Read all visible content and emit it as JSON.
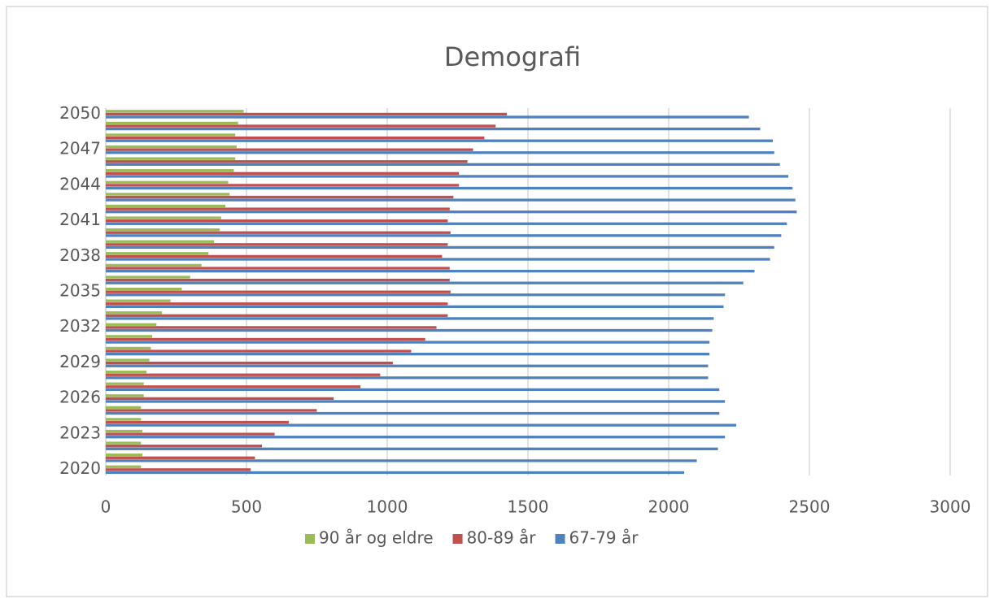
{
  "chart_data": {
    "type": "hbar",
    "title": "Demografi",
    "categories": [
      "2020",
      null,
      null,
      "2023",
      null,
      null,
      "2026",
      null,
      null,
      "2029",
      null,
      null,
      "2032",
      null,
      null,
      "2035",
      null,
      null,
      "2038",
      null,
      null,
      "2041",
      null,
      null,
      "2044",
      null,
      null,
      "2047",
      null,
      null,
      "2050"
    ],
    "series": [
      {
        "name": "90 år og eldre",
        "color": "#9bbb59",
        "values": [
          125,
          130,
          125,
          130,
          125,
          125,
          135,
          135,
          145,
          155,
          160,
          165,
          180,
          200,
          230,
          270,
          300,
          340,
          365,
          385,
          405,
          410,
          425,
          440,
          435,
          455,
          460,
          465,
          460,
          470,
          490
        ]
      },
      {
        "name": "80-89 år",
        "color": "#c0504d",
        "values": [
          515,
          530,
          555,
          600,
          650,
          750,
          810,
          905,
          975,
          1020,
          1085,
          1135,
          1175,
          1215,
          1215,
          1225,
          1222,
          1222,
          1195,
          1215,
          1225,
          1215,
          1222,
          1235,
          1255,
          1255,
          1285,
          1305,
          1345,
          1385,
          1425
        ]
      },
      {
        "name": "67-79 år",
        "color": "#4f81bd",
        "values": [
          2055,
          2100,
          2175,
          2200,
          2240,
          2180,
          2200,
          2180,
          2140,
          2140,
          2145,
          2145,
          2155,
          2160,
          2195,
          2200,
          2265,
          2305,
          2360,
          2375,
          2400,
          2420,
          2455,
          2450,
          2440,
          2425,
          2395,
          2375,
          2370,
          2325,
          2285
        ]
      }
    ],
    "xlim": [
      0,
      3000
    ],
    "xticks": [
      0,
      500,
      1000,
      1500,
      2000,
      2500,
      3000
    ],
    "grid": true,
    "legend": "bottom"
  }
}
